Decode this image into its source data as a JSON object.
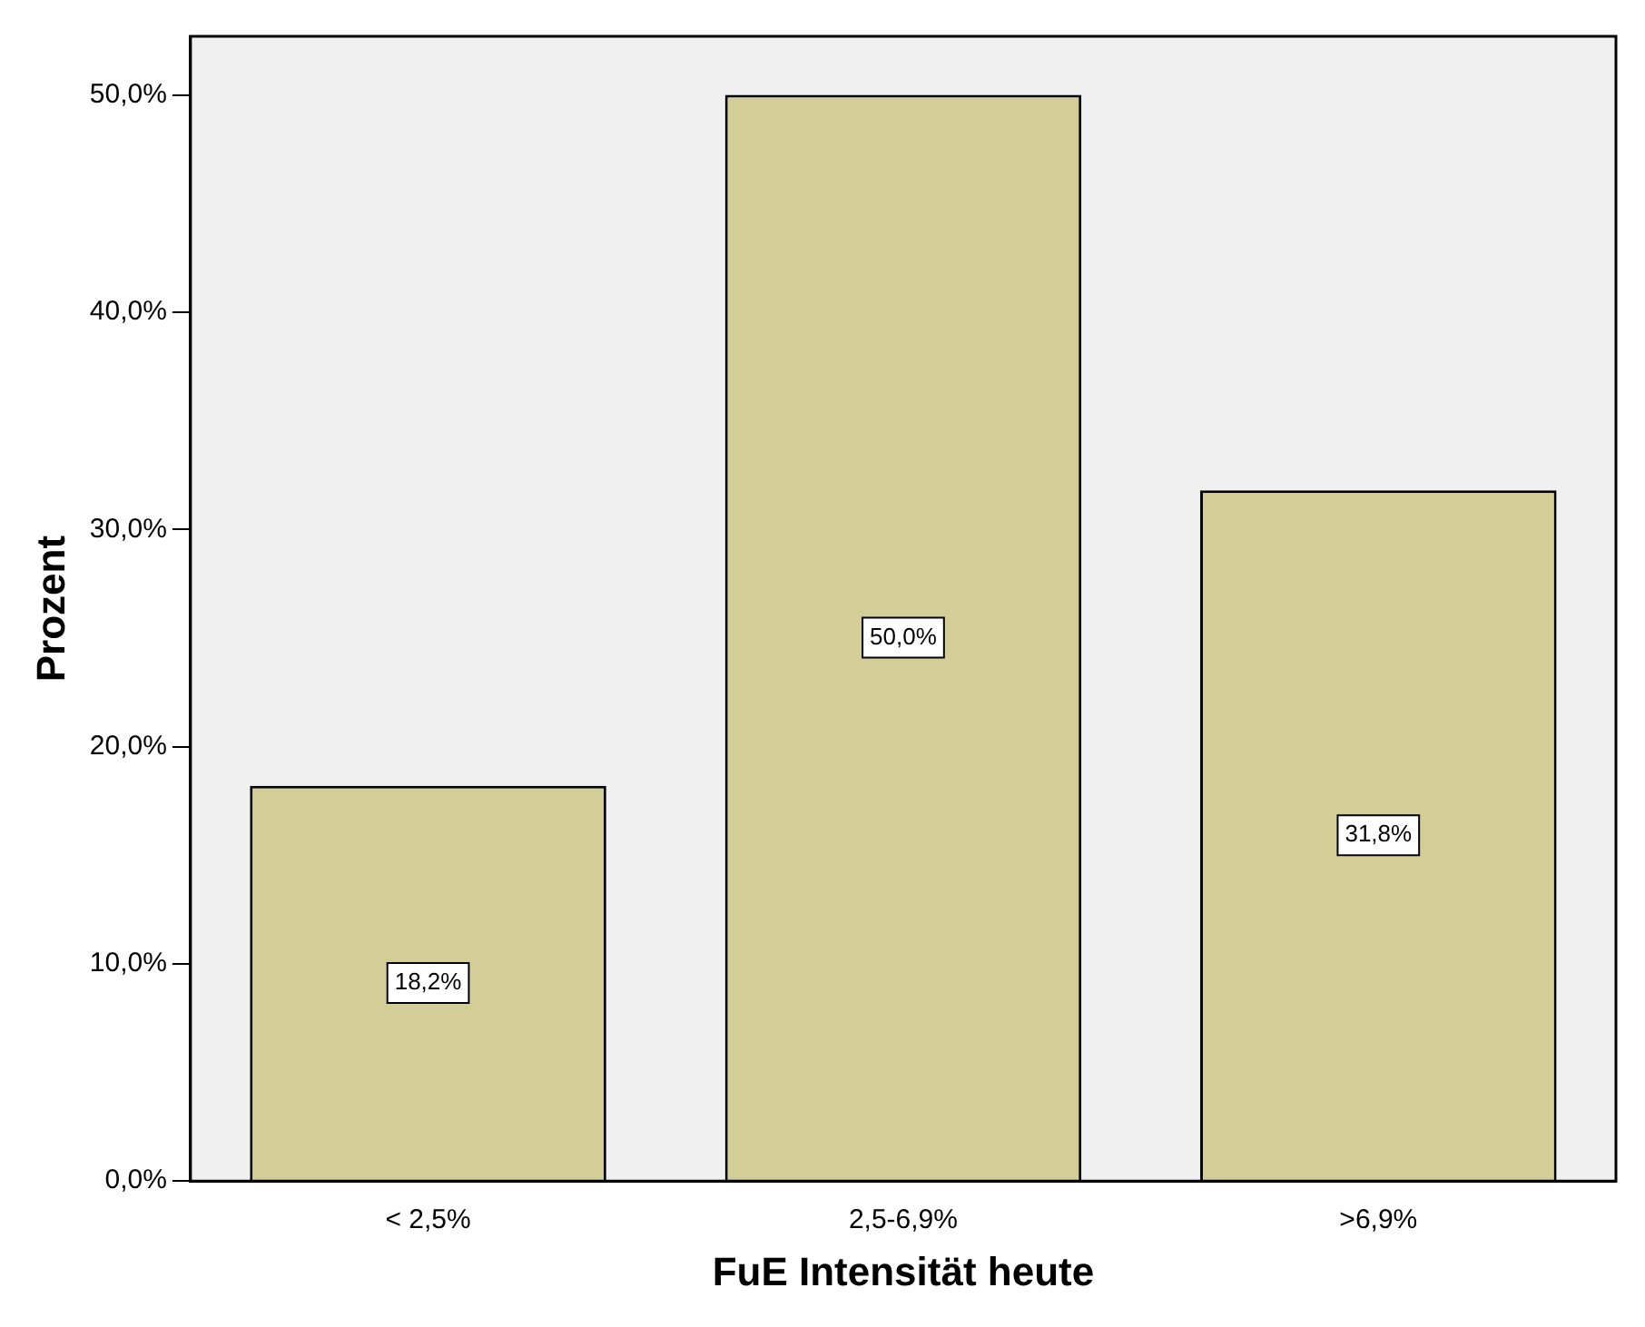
{
  "chart_data": {
    "type": "bar",
    "xlabel": "FuE Intensität heute",
    "ylabel": "Prozent",
    "categories": [
      "< 2,5%",
      "2,5-6,9%",
      ">6,9%"
    ],
    "values": [
      18.2,
      50.0,
      31.8
    ],
    "value_labels": [
      "18,2%",
      "50,0%",
      "31,8%"
    ],
    "color": "#d3cd98",
    "ylim": [
      0,
      52.7
    ],
    "yticks": [
      {
        "value": 0,
        "label": "0,0%"
      },
      {
        "value": 10,
        "label": "10,0%"
      },
      {
        "value": 20,
        "label": "20,0%"
      },
      {
        "value": 30,
        "label": "30,0%"
      },
      {
        "value": 40,
        "label": "40,0%"
      },
      {
        "value": 50,
        "label": "50,0%"
      }
    ],
    "grid": false,
    "legend": false
  }
}
